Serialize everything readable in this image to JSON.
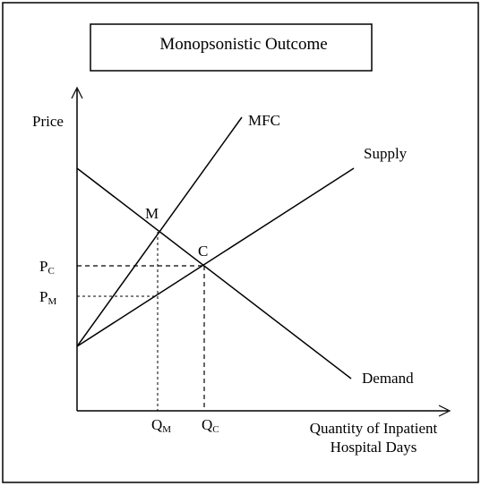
{
  "title": "Monopsonistic Outcome",
  "axes": {
    "y_label": "Price",
    "x_label_line1": "Quantity of Inpatient",
    "x_label_line2": "Hospital Days"
  },
  "curves": {
    "mfc": "MFC",
    "supply": "Supply",
    "demand": "Demand"
  },
  "points": {
    "m": "M",
    "c": "C"
  },
  "prices": {
    "pc_main": "P",
    "pc_sub": "C",
    "pm_main": "P",
    "pm_sub": "M"
  },
  "quantities": {
    "qm_main": "Q",
    "qm_sub": "M",
    "qc_main": "Q",
    "qc_sub": "C"
  }
}
